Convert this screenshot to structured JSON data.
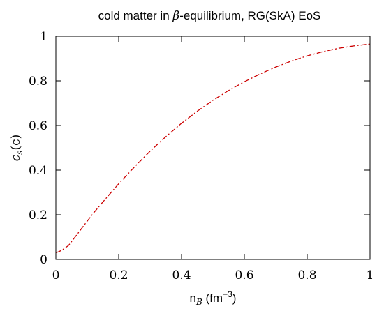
{
  "chart_data": {
    "type": "line",
    "title": {
      "before": "cold matter in ",
      "symbol": "β",
      "after": "-equilibrium, RG(SkA) EoS"
    },
    "xlabel": {
      "base": "n",
      "sub": "B",
      "unit_before": " (fm",
      "unit_sup": "−3",
      "unit_after": ")"
    },
    "ylabel": {
      "base": "c",
      "sub": "s",
      "args": "(c)"
    },
    "xlim": [
      0,
      1
    ],
    "ylim": [
      0,
      1
    ],
    "xticks": [
      "0",
      "0.2",
      "0.4",
      "0.6",
      "0.8",
      "1"
    ],
    "yticks": [
      "0",
      "0.2",
      "0.4",
      "0.6",
      "0.8",
      "1"
    ],
    "grid": false,
    "series": [
      {
        "color": "#cc0000",
        "line_style": "dash-dot",
        "x": [
          0.0,
          0.01,
          0.02,
          0.03,
          0.04,
          0.05,
          0.06,
          0.08,
          0.1,
          0.12,
          0.15,
          0.2,
          0.25,
          0.3,
          0.35,
          0.4,
          0.45,
          0.5,
          0.55,
          0.6,
          0.65,
          0.7,
          0.75,
          0.8,
          0.85,
          0.9,
          0.95,
          1.0
        ],
        "y": [
          0.03,
          0.035,
          0.042,
          0.052,
          0.062,
          0.08,
          0.098,
          0.135,
          0.172,
          0.208,
          0.258,
          0.339,
          0.414,
          0.485,
          0.55,
          0.61,
          0.664,
          0.713,
          0.757,
          0.796,
          0.831,
          0.862,
          0.889,
          0.912,
          0.931,
          0.946,
          0.957,
          0.965
        ]
      }
    ]
  }
}
